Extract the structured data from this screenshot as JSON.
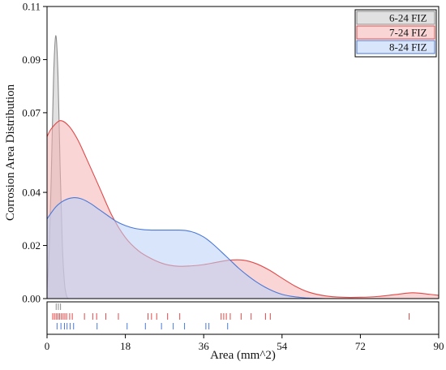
{
  "chart_data": {
    "type": "area",
    "title": "",
    "xlabel": "Area (mm^2)",
    "ylabel": "Corrosion Area Distribution",
    "xlim": [
      0,
      90
    ],
    "ylim": [
      0,
      0.11
    ],
    "x_ticks": [
      0,
      18,
      36,
      54,
      72,
      90
    ],
    "x_tick_labels": [
      "0",
      "18",
      "36",
      "54",
      "72",
      "90"
    ],
    "y_ticks": [
      0.0,
      0.02,
      0.04,
      0.07,
      0.09,
      0.11
    ],
    "y_tick_labels": [
      "0.00",
      "0.02",
      "0.04",
      "0.07",
      "0.09",
      "0.11"
    ],
    "legend_position": "top-right",
    "grid": false,
    "series": [
      {
        "name": "6-24 FIZ",
        "stroke": "#8c8c8c",
        "fill": "#c9c9c9",
        "x": [
          0,
          0.5,
          1,
          1.5,
          2,
          2.5,
          3,
          3.5,
          4,
          4.5,
          5
        ],
        "y": [
          0.004,
          0.018,
          0.048,
          0.083,
          0.099,
          0.085,
          0.05,
          0.021,
          0.006,
          0.001,
          0
        ],
        "rug": [
          2.1,
          2.6,
          3.1
        ]
      },
      {
        "name": "7-24 FIZ",
        "stroke": "#e04a4a",
        "fill": "#f4b3b3",
        "x": [
          0,
          1,
          3,
          5,
          7,
          9,
          12,
          15,
          18,
          21,
          24,
          27,
          30,
          33,
          36,
          39,
          42,
          45,
          48,
          51,
          54,
          57,
          60,
          64,
          68,
          72,
          76,
          80,
          84,
          88,
          90
        ],
        "y": [
          0.061,
          0.064,
          0.067,
          0.065,
          0.06,
          0.053,
          0.042,
          0.031,
          0.023,
          0.018,
          0.015,
          0.013,
          0.0122,
          0.0123,
          0.0128,
          0.0137,
          0.0145,
          0.0145,
          0.0132,
          0.0108,
          0.0077,
          0.0047,
          0.0025,
          0.001,
          0.0005,
          0.0005,
          0.0008,
          0.0015,
          0.0022,
          0.0016,
          0.0012
        ],
        "rug": [
          1.3,
          1.7,
          2.1,
          2.5,
          2.9,
          3.3,
          3.7,
          4.1,
          4.5,
          5.2,
          5.8,
          8.6,
          10.5,
          11.4,
          13.5,
          16.4,
          23.2,
          24.0,
          25.2,
          27.7,
          30.5,
          40.0,
          40.6,
          41.2,
          42.1,
          44.6,
          46.9,
          50.2,
          51.3,
          83.2
        ]
      },
      {
        "name": "8-24 FIZ",
        "stroke": "#4a78d8",
        "fill": "#b9d0f5",
        "x": [
          0,
          2,
          4,
          6,
          8,
          10,
          12,
          14,
          16,
          18,
          20,
          22,
          24,
          26,
          28,
          30,
          32,
          34,
          36,
          38,
          40,
          42,
          44,
          46,
          48,
          50,
          52,
          54,
          56,
          58,
          60,
          62,
          64
        ],
        "y": [
          0.03,
          0.0345,
          0.037,
          0.038,
          0.0375,
          0.0358,
          0.0335,
          0.0312,
          0.029,
          0.0275,
          0.0265,
          0.026,
          0.0258,
          0.0258,
          0.0258,
          0.0258,
          0.0256,
          0.0248,
          0.0232,
          0.0207,
          0.0177,
          0.0146,
          0.0115,
          0.0088,
          0.0064,
          0.0044,
          0.0028,
          0.0016,
          0.0009,
          0.0005,
          0.0002,
          0.0001,
          0
        ],
        "rug": [
          2.3,
          3.2,
          4.0,
          4.6,
          5.3,
          6.1,
          11.5,
          18.4,
          22.6,
          26.3,
          29.0,
          31.6,
          36.5,
          37.2,
          41.5
        ]
      }
    ]
  }
}
